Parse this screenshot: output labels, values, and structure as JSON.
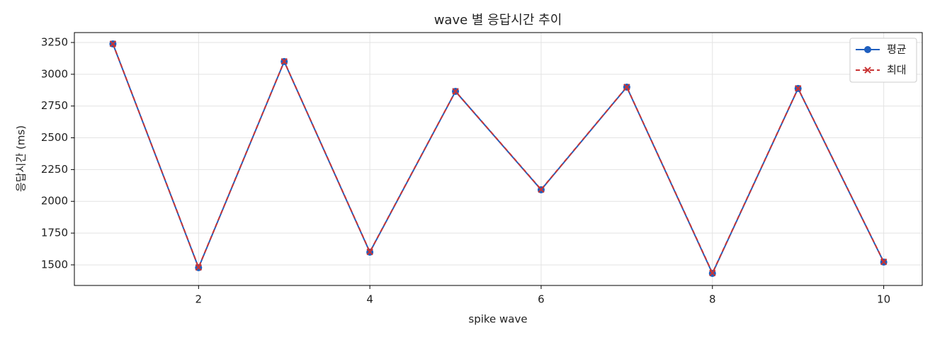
{
  "chart_data": {
    "type": "line",
    "title": "wave 별 응답시간 추이",
    "x_label": "spike wave",
    "y_label": "응답시간 (ms)",
    "x": [
      1,
      2,
      3,
      4,
      5,
      6,
      7,
      8,
      9,
      10
    ],
    "series": [
      {
        "name": "평균",
        "color": "#1f5fbf",
        "marker": "circle",
        "dash": false,
        "values": [
          3239,
          1478,
          3100,
          1600,
          2865,
          2091,
          2899,
          1433,
          2888,
          1522
        ]
      },
      {
        "name": "최대",
        "color": "#c93434",
        "marker": "x",
        "dash": true,
        "values": [
          3240,
          1480,
          3101,
          1602,
          2866,
          2093,
          2900,
          1436,
          2889,
          1524
        ]
      }
    ],
    "xlim": [
      0.55,
      10.45
    ],
    "xticks": [
      2,
      4,
      6,
      8,
      10
    ],
    "ylim": [
      1338,
      3328
    ],
    "yticks": [
      1500,
      1750,
      2000,
      2250,
      2500,
      2750,
      3000,
      3250
    ],
    "grid": true,
    "legend": "upper-right"
  }
}
